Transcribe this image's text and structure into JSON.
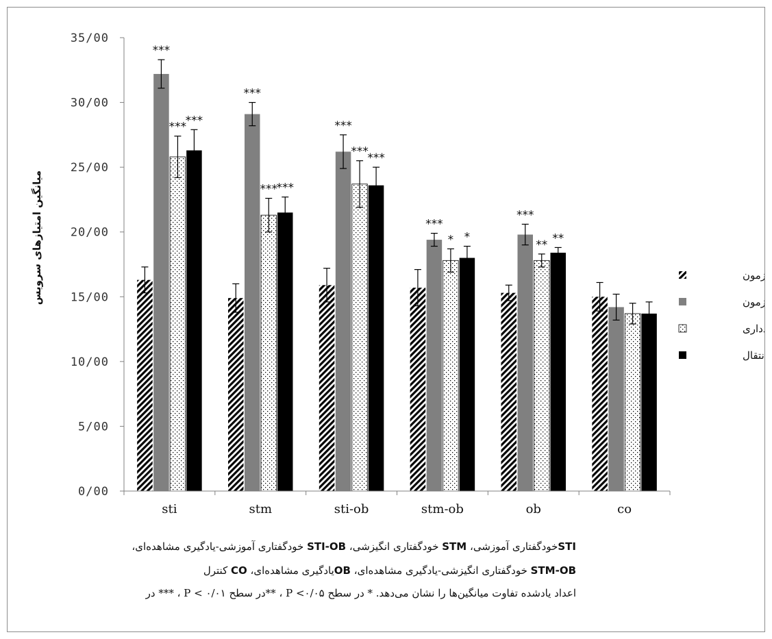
{
  "chart_data": {
    "type": "bar",
    "title": "",
    "xlabel": "",
    "ylabel": "میانگین امتیازهای سرویس",
    "ylim": [
      0,
      35
    ],
    "yticks": [
      "0/00",
      "5/00",
      "10/00",
      "15/00",
      "20/00",
      "25/00",
      "30/00",
      "35/00"
    ],
    "categories": [
      "sti",
      "stm",
      "sti-ob",
      "stm-ob",
      "ob",
      "co"
    ],
    "series": [
      {
        "name": "پیش آزمون",
        "fill": "hatch",
        "values": [
          16.3,
          14.9,
          15.9,
          15.7,
          15.3,
          15.0
        ],
        "errors": [
          1.0,
          1.1,
          1.3,
          1.4,
          0.6,
          1.1
        ],
        "annotations": [
          "",
          "",
          "",
          "",
          "",
          ""
        ]
      },
      {
        "name": "پس آزمون",
        "fill": "#808080",
        "values": [
          32.2,
          29.1,
          26.2,
          19.4,
          19.8,
          14.2
        ],
        "errors": [
          1.1,
          0.9,
          1.3,
          0.5,
          0.8,
          1.0
        ],
        "annotations": [
          "***",
          "***",
          "***",
          "***",
          "***",
          ""
        ]
      },
      {
        "name": "یادداری",
        "fill": "dots",
        "values": [
          25.8,
          21.3,
          23.7,
          17.8,
          17.8,
          13.7
        ],
        "errors": [
          1.6,
          1.3,
          1.8,
          0.9,
          0.5,
          0.8
        ],
        "annotations": [
          "***",
          "***",
          "***",
          "*",
          "**",
          ""
        ]
      },
      {
        "name": "انتقال",
        "fill": "#000000",
        "values": [
          26.3,
          21.5,
          23.6,
          18.0,
          18.4,
          13.7
        ],
        "errors": [
          1.6,
          1.2,
          1.4,
          0.9,
          0.4,
          0.9
        ],
        "annotations": [
          "***",
          "***",
          "***",
          "*",
          "**",
          ""
        ]
      }
    ],
    "legend_position": "right",
    "grid": false
  },
  "caption": {
    "line1": {
      "a_bold": "STI",
      "a_text": "خودگفتاری آموزشی، ",
      "b_bold": "STM",
      "b_text": " خودگفتاری انگیزشی، ",
      "c_bold": "STI-OB",
      "c_text": " خودگفتاری آموزشی-یادگیری مشاهده‌ای،"
    },
    "line2": {
      "a_bold": "STM-OB",
      "a_text": " خودگفتاری انگیزشی-یادگیری مشاهده‌ای، ",
      "b_bold": "OB",
      "b_text": "یادگیری مشاهده‌ای، ",
      "c_bold": "CO",
      "c_text": " کنترل"
    },
    "line3": "اعداد یادشده تفاوت میانگین‌ها را نشان می‌دهد. * در  سطح P <۰/۰۵ ، **در سطح P < ۰/۰۱ ، *** در"
  }
}
